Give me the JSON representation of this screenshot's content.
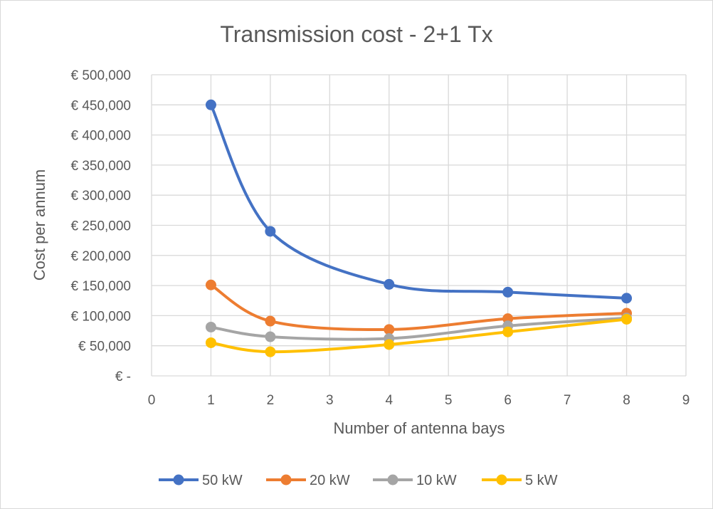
{
  "chart_data": {
    "type": "line",
    "smooth": true,
    "title": "Transmission cost - 2+1 Tx",
    "xlabel": "Number of antenna bays",
    "ylabel": "Cost per annum",
    "xlim": [
      0,
      9
    ],
    "ylim": [
      0,
      500000
    ],
    "x_ticks": [
      "0",
      "1",
      "2",
      "3",
      "4",
      "5",
      "6",
      "7",
      "8",
      "9"
    ],
    "y_ticks": [
      "€ -",
      "€ 50,000",
      "€ 100,000",
      "€ 150,000",
      "€ 200,000",
      "€ 250,000",
      "€ 300,000",
      "€ 350,000",
      "€ 400,000",
      "€ 450,000",
      "€ 500,000"
    ],
    "grid": true,
    "legend_position": "bottom",
    "x": [
      1,
      2,
      4,
      6,
      8
    ],
    "series": [
      {
        "name": "50 kW",
        "color": "#4472c4",
        "values": [
          450000,
          240000,
          152000,
          139000,
          129000
        ]
      },
      {
        "name": "20 kW",
        "color": "#ed7d31",
        "values": [
          151000,
          91000,
          77000,
          95000,
          104000
        ]
      },
      {
        "name": "10 kW",
        "color": "#a5a5a5",
        "values": [
          81000,
          65000,
          62000,
          83000,
          96000
        ]
      },
      {
        "name": "5 kW",
        "color": "#ffc000",
        "values": [
          55000,
          40000,
          52000,
          73000,
          94000
        ]
      }
    ]
  }
}
